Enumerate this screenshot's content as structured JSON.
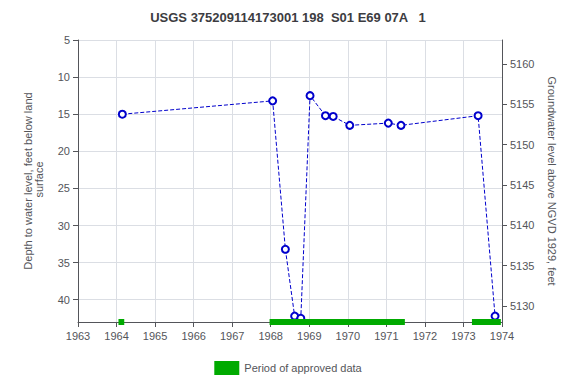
{
  "chart_data": {
    "type": "line",
    "title": "USGS 375209114173001 198  S01 E69 07A   1",
    "ylabel": "Depth to water level, feet below land\n surface",
    "y2label": "Groundwater level above NGVD 1929, feet",
    "x": [
      1964.15,
      1968.05,
      1968.38,
      1968.62,
      1968.78,
      1969.02,
      1969.42,
      1969.62,
      1970.05,
      1971.05,
      1971.38,
      1973.38,
      1973.82
    ],
    "series": [
      {
        "type": "line",
        "color": "#0000cc",
        "marker": "circle",
        "line_style": "dashed",
        "values": [
          15.0,
          13.2,
          33.2,
          42.2,
          42.5,
          12.5,
          15.2,
          15.3,
          16.5,
          16.2,
          16.5,
          15.2,
          42.2
        ]
      },
      {
        "type": "period",
        "name": "Period of approved data",
        "color": "#00aa00",
        "periods": [
          [
            1964.05,
            1964.2
          ],
          [
            1967.97,
            1971.48
          ],
          [
            1973.22,
            1973.97
          ]
        ]
      }
    ],
    "xlim": [
      1963,
      1974
    ],
    "xticks": [
      1963,
      1964,
      1965,
      1966,
      1967,
      1968,
      1969,
      1970,
      1971,
      1972,
      1973,
      1974
    ],
    "ylim": [
      43,
      5
    ],
    "yticks": [
      5,
      10,
      15,
      20,
      25,
      30,
      35,
      40
    ],
    "y2lim": [
      5128,
      5163
    ],
    "y2ticks": [
      5130,
      5135,
      5140,
      5145,
      5150,
      5155,
      5160
    ],
    "grid": true,
    "legend": "bottom"
  }
}
